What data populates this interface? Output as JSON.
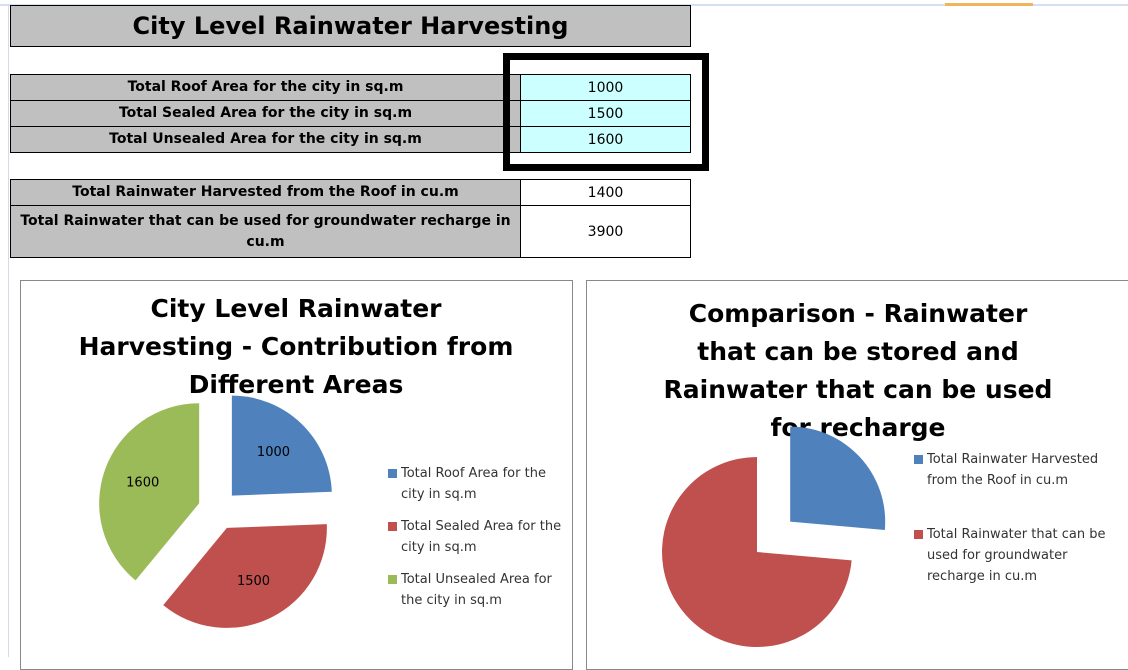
{
  "sheet": {
    "title": "City Level Rainwater Harvesting",
    "inputs": [
      {
        "label": "Total Roof Area for the city in sq.m",
        "value": 1000
      },
      {
        "label": "Total Sealed Area for the city in sq.m",
        "value": 1500
      },
      {
        "label": "Total Unsealed Area for the city in sq.m",
        "value": 1600
      }
    ],
    "outputs": [
      {
        "label": "Total Rainwater Harvested from the Roof in cu.m",
        "value": 1400
      },
      {
        "label": "Total Rainwater that can be used for groundwater recharge in cu.m",
        "value": 3900
      }
    ]
  },
  "chart_data": [
    {
      "type": "pie",
      "title": "City Level Rainwater Harvesting - Contribution from Different Areas",
      "categories": [
        "Total Roof Area for the city in sq.m",
        "Total Sealed Area for the city in sq.m",
        "Total Unsealed Area for the city in sq.m"
      ],
      "values": [
        1000,
        1500,
        1600
      ],
      "colors": [
        "#4f81bd",
        "#c0504d",
        "#9bbb59"
      ],
      "data_labels": true
    },
    {
      "type": "pie",
      "title": "Comparison - Rainwater that can be stored and Rainwater that can be used for recharge",
      "categories": [
        "Total Rainwater Harvested from the Roof in cu.m",
        "Total Rainwater that can be used for groundwater recharge in cu.m"
      ],
      "values": [
        1400,
        3900
      ],
      "colors": [
        "#4f81bd",
        "#c0504d"
      ],
      "data_labels": false
    }
  ]
}
